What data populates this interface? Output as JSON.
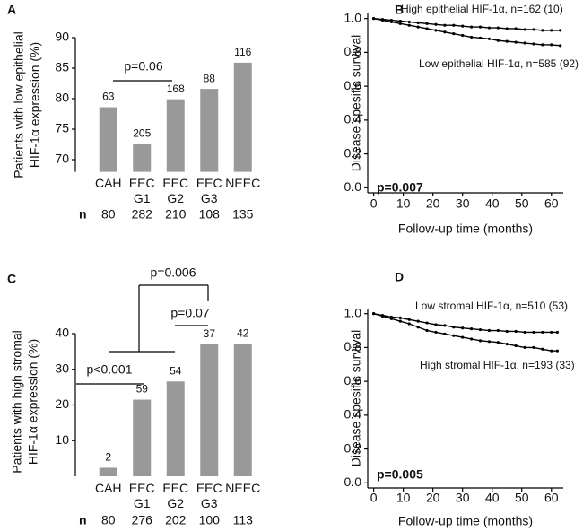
{
  "chart_data": [
    {
      "type": "bar",
      "panel": "A",
      "y_label": [
        "Patients with low epithelial",
        "HIF-1α expression (%)"
      ],
      "categories": [
        "CAH",
        "EEC G1",
        "EEC G2",
        "EEC G3",
        "NEEC"
      ],
      "values": [
        78.6,
        72.6,
        79.9,
        81.6,
        85.9
      ],
      "color": "#999999",
      "bar_labels": [
        63,
        205,
        168,
        88,
        116
      ],
      "n_label": "n",
      "n": [
        80,
        282,
        210,
        108,
        135
      ],
      "ylim": [
        68,
        90
      ],
      "yticks": [
        70,
        75,
        80,
        85,
        90
      ],
      "annotations": [
        "p=0.06"
      ]
    },
    {
      "type": "line",
      "panel": "B",
      "y_label": "Disease spesific survival",
      "x_label": "Follow-up time (months)",
      "x": [
        0,
        3,
        6,
        9,
        12,
        15,
        18,
        21,
        24,
        27,
        30,
        33,
        36,
        39,
        42,
        45,
        48,
        51,
        54,
        57,
        60,
        63
      ],
      "series": [
        {
          "name": "High epithelial HIF-1α, n=162 (10)",
          "color": "#000000",
          "values": [
            1.0,
            0.995,
            0.99,
            0.985,
            0.98,
            0.975,
            0.97,
            0.965,
            0.96,
            0.96,
            0.955,
            0.95,
            0.95,
            0.945,
            0.945,
            0.94,
            0.94,
            0.935,
            0.935,
            0.93,
            0.93,
            0.93
          ]
        },
        {
          "name": "Low epithelial HIF-1α, n=585 (92)",
          "color": "#000000",
          "values": [
            1.0,
            0.99,
            0.98,
            0.97,
            0.96,
            0.95,
            0.94,
            0.93,
            0.92,
            0.91,
            0.9,
            0.89,
            0.885,
            0.88,
            0.87,
            0.865,
            0.86,
            0.855,
            0.85,
            0.845,
            0.845,
            0.84
          ]
        }
      ],
      "xlim": [
        -2,
        64
      ],
      "xticks": [
        0,
        10,
        20,
        30,
        40,
        50,
        60
      ],
      "ylim": [
        -0.03,
        1.03
      ],
      "yticks": [
        {
          "value": 0,
          "label": "0.0"
        },
        {
          "value": 0.2,
          "label": "0.2"
        },
        {
          "value": 0.4,
          "label": "0.4"
        },
        {
          "value": 0.6,
          "label": "0.6"
        },
        {
          "value": 0.8,
          "label": "0.8"
        },
        {
          "value": 1,
          "label": "1.0"
        }
      ],
      "p_value": "p=0.007"
    },
    {
      "type": "bar",
      "panel": "C",
      "y_label": [
        "Patients with high stromal",
        "HIF-1α expression (%)"
      ],
      "categories": [
        "CAH",
        "EEC G1",
        "EEC G2",
        "EEC G3",
        "NEEC"
      ],
      "values": [
        2.4,
        21.5,
        26.6,
        37,
        37.2
      ],
      "color": "#999999",
      "bar_labels": [
        2,
        59,
        54,
        37,
        42
      ],
      "n_label": "n",
      "n": [
        80,
        276,
        202,
        100,
        113
      ],
      "ylim": [
        0,
        40
      ],
      "yticks": [
        10,
        20,
        30,
        40
      ],
      "annotations": [
        "p<0.001",
        "p=0.07",
        "p=0.006"
      ]
    },
    {
      "type": "line",
      "panel": "D",
      "y_label": "Disease spesific survival",
      "x_label": "Follow-up time (months)",
      "x": [
        0,
        3,
        6,
        9,
        12,
        15,
        18,
        21,
        24,
        27,
        30,
        33,
        36,
        39,
        42,
        45,
        48,
        51,
        54,
        57,
        60,
        62
      ],
      "series": [
        {
          "name": "Low stromal HIF-1α, n=510 (53)",
          "color": "#000000",
          "values": [
            1.0,
            0.99,
            0.98,
            0.975,
            0.965,
            0.955,
            0.945,
            0.935,
            0.93,
            0.92,
            0.915,
            0.91,
            0.905,
            0.9,
            0.9,
            0.895,
            0.895,
            0.89,
            0.89,
            0.89,
            0.89,
            0.89
          ]
        },
        {
          "name": "High stromal HIF-1α, n=193 (33)",
          "color": "#000000",
          "values": [
            1.0,
            0.985,
            0.97,
            0.955,
            0.94,
            0.92,
            0.9,
            0.89,
            0.88,
            0.87,
            0.86,
            0.85,
            0.84,
            0.835,
            0.83,
            0.82,
            0.81,
            0.8,
            0.8,
            0.79,
            0.78,
            0.78
          ]
        }
      ],
      "xlim": [
        -2,
        64
      ],
      "xticks": [
        0,
        10,
        20,
        30,
        40,
        50,
        60
      ],
      "ylim": [
        -0.03,
        1.03
      ],
      "yticks": [
        {
          "value": 0,
          "label": "0.0"
        },
        {
          "value": 0.2,
          "label": "0.2"
        },
        {
          "value": 0.4,
          "label": "0.4"
        },
        {
          "value": 0.6,
          "label": "0.6"
        },
        {
          "value": 0.8,
          "label": "0.8"
        },
        {
          "value": 1,
          "label": "1.0"
        }
      ],
      "p_value": "p=0.005"
    }
  ]
}
